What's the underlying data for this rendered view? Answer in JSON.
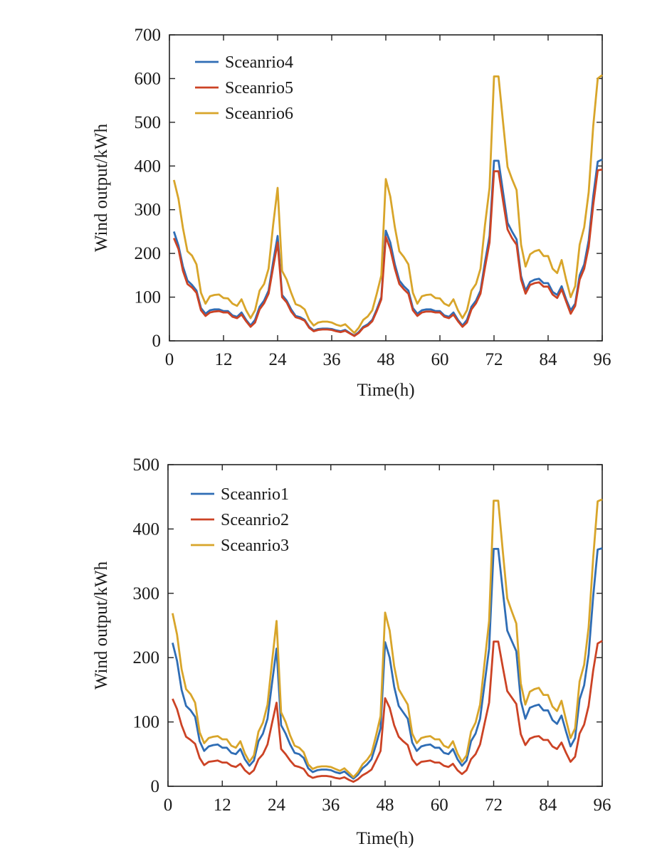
{
  "colors": {
    "blue": "#2f6db5",
    "red": "#cc4325",
    "yellow": "#d8a52a"
  },
  "chart_data": [
    {
      "type": "line",
      "xlabel": "Time(h)",
      "ylabel": "Wind output/kWh",
      "xlim": [
        0,
        96
      ],
      "ylim": [
        0,
        700
      ],
      "xticks": [
        "0",
        "12",
        "24",
        "36",
        "48",
        "60",
        "72",
        "84",
        "96"
      ],
      "yticks": [
        "0",
        "100",
        "200",
        "300",
        "400",
        "500",
        "600",
        "700"
      ],
      "legend_position": "top-left",
      "grid": false,
      "x": [
        1,
        2,
        3,
        4,
        5,
        6,
        7,
        8,
        9,
        10,
        11,
        12,
        13,
        14,
        15,
        16,
        17,
        18,
        19,
        20,
        21,
        22,
        23,
        24,
        25,
        26,
        27,
        28,
        29,
        30,
        31,
        32,
        33,
        34,
        35,
        36,
        37,
        38,
        39,
        40,
        41,
        42,
        43,
        44,
        45,
        46,
        47,
        48,
        49,
        50,
        51,
        52,
        53,
        54,
        55,
        56,
        57,
        58,
        59,
        60,
        61,
        62,
        63,
        64,
        65,
        66,
        67,
        68,
        69,
        70,
        71,
        72,
        73,
        74,
        75,
        76,
        77,
        78,
        79,
        80,
        81,
        82,
        83,
        84,
        85,
        86,
        87,
        88,
        89,
        90,
        91,
        92,
        93,
        94,
        95,
        96
      ],
      "series": [
        {
          "name": "Sceanrio4",
          "color": "#2f6db5",
          "values": [
            250,
            218,
            170,
            138,
            128,
            115,
            75,
            62,
            70,
            72,
            72,
            68,
            68,
            58,
            55,
            65,
            48,
            35,
            48,
            78,
            92,
            115,
            180,
            240,
            105,
            92,
            72,
            57,
            54,
            48,
            32,
            24,
            27,
            28,
            28,
            27,
            24,
            22,
            25,
            18,
            12,
            20,
            32,
            38,
            48,
            72,
            100,
            252,
            225,
            175,
            138,
            125,
            115,
            75,
            62,
            70,
            72,
            72,
            68,
            68,
            58,
            55,
            65,
            48,
            35,
            48,
            78,
            92,
            115,
            180,
            240,
            412,
            412,
            340,
            270,
            250,
            232,
            148,
            115,
            135,
            140,
            142,
            132,
            132,
            112,
            105,
            125,
            95,
            70,
            85,
            150,
            175,
            230,
            330,
            410,
            415
          ]
        },
        {
          "name": "Sceanrio5",
          "color": "#cc4325",
          "values": [
            235,
            210,
            160,
            130,
            122,
            110,
            70,
            57,
            65,
            67,
            68,
            65,
            65,
            55,
            52,
            60,
            45,
            32,
            42,
            72,
            86,
            108,
            168,
            225,
            100,
            88,
            67,
            54,
            51,
            46,
            30,
            22,
            25,
            26,
            26,
            25,
            22,
            20,
            23,
            17,
            11,
            18,
            30,
            35,
            45,
            68,
            95,
            238,
            210,
            165,
            130,
            118,
            108,
            70,
            57,
            65,
            67,
            67,
            65,
            65,
            55,
            52,
            60,
            45,
            32,
            42,
            72,
            86,
            108,
            168,
            225,
            388,
            388,
            320,
            255,
            235,
            220,
            140,
            108,
            128,
            132,
            134,
            124,
            124,
            106,
            98,
            118,
            90,
            62,
            80,
            140,
            165,
            215,
            310,
            390,
            392
          ]
        },
        {
          "name": "Sceanrio6",
          "color": "#d8a52a",
          "values": [
            368,
            325,
            258,
            205,
            195,
            175,
            110,
            85,
            102,
            105,
            106,
            98,
            97,
            85,
            80,
            95,
            70,
            52,
            70,
            115,
            130,
            165,
            265,
            350,
            160,
            140,
            110,
            84,
            80,
            72,
            48,
            35,
            42,
            44,
            44,
            42,
            37,
            34,
            38,
            28,
            18,
            30,
            48,
            56,
            70,
            108,
            150,
            370,
            330,
            260,
            205,
            192,
            175,
            110,
            85,
            102,
            105,
            106,
            98,
            97,
            85,
            80,
            95,
            70,
            52,
            70,
            115,
            130,
            165,
            265,
            350,
            605,
            605,
            500,
            398,
            370,
            345,
            220,
            170,
            198,
            205,
            208,
            194,
            194,
            165,
            155,
            185,
            140,
            100,
            125,
            220,
            260,
            340,
            490,
            600,
            608
          ]
        }
      ]
    },
    {
      "type": "line",
      "xlabel": "Time(h)",
      "ylabel": "Wind output/kWh",
      "xlim": [
        0,
        96
      ],
      "ylim": [
        0,
        500
      ],
      "xticks": [
        "0",
        "12",
        "24",
        "36",
        "48",
        "60",
        "72",
        "84",
        "96"
      ],
      "yticks": [
        "0",
        "100",
        "200",
        "300",
        "400",
        "500"
      ],
      "legend_position": "top-left",
      "grid": false,
      "x": [
        1,
        2,
        3,
        4,
        5,
        6,
        7,
        8,
        9,
        10,
        11,
        12,
        13,
        14,
        15,
        16,
        17,
        18,
        19,
        20,
        21,
        22,
        23,
        24,
        25,
        26,
        27,
        28,
        29,
        30,
        31,
        32,
        33,
        34,
        35,
        36,
        37,
        38,
        39,
        40,
        41,
        42,
        43,
        44,
        45,
        46,
        47,
        48,
        49,
        50,
        51,
        52,
        53,
        54,
        55,
        56,
        57,
        58,
        59,
        60,
        61,
        62,
        63,
        64,
        65,
        66,
        67,
        68,
        69,
        70,
        71,
        72,
        73,
        74,
        75,
        76,
        77,
        78,
        79,
        80,
        81,
        82,
        83,
        84,
        85,
        86,
        87,
        88,
        89,
        90,
        91,
        92,
        93,
        94,
        95,
        96
      ],
      "series": [
        {
          "name": "Sceanrio1",
          "color": "#2f6db5",
          "values": [
            223,
            195,
            150,
            125,
            118,
            108,
            70,
            55,
            62,
            64,
            65,
            60,
            60,
            52,
            50,
            58,
            42,
            32,
            40,
            70,
            82,
            105,
            160,
            214,
            95,
            82,
            65,
            52,
            50,
            44,
            28,
            22,
            25,
            26,
            26,
            25,
            22,
            20,
            23,
            17,
            12,
            18,
            28,
            34,
            42,
            65,
            90,
            224,
            200,
            155,
            125,
            115,
            105,
            68,
            55,
            62,
            64,
            65,
            60,
            60,
            52,
            50,
            58,
            42,
            32,
            40,
            70,
            82,
            105,
            160,
            214,
            369,
            369,
            305,
            242,
            226,
            210,
            133,
            105,
            122,
            125,
            127,
            118,
            118,
            103,
            97,
            110,
            85,
            62,
            75,
            135,
            157,
            205,
            295,
            368,
            370
          ]
        },
        {
          "name": "Sceanrio2",
          "color": "#cc4325",
          "values": [
            136,
            120,
            95,
            77,
            72,
            66,
            44,
            33,
            38,
            39,
            40,
            37,
            37,
            32,
            30,
            35,
            25,
            19,
            25,
            42,
            50,
            65,
            98,
            130,
            58,
            50,
            40,
            32,
            30,
            27,
            17,
            13,
            15,
            16,
            16,
            15,
            13,
            12,
            14,
            10,
            7,
            11,
            17,
            21,
            26,
            40,
            55,
            137,
            122,
            95,
            77,
            70,
            64,
            42,
            33,
            38,
            39,
            40,
            37,
            37,
            32,
            30,
            35,
            25,
            19,
            25,
            42,
            50,
            65,
            98,
            130,
            225,
            225,
            186,
            148,
            138,
            128,
            81,
            64,
            74,
            77,
            78,
            72,
            72,
            62,
            58,
            68,
            52,
            38,
            46,
            82,
            96,
            125,
            180,
            222,
            226
          ]
        },
        {
          "name": "Sceanrio3",
          "color": "#d8a52a",
          "values": [
            269,
            236,
            182,
            151,
            143,
            130,
            84,
            67,
            75,
            77,
            78,
            73,
            73,
            63,
            60,
            70,
            51,
            38,
            48,
            85,
            99,
            127,
            193,
            257,
            115,
            100,
            79,
            63,
            60,
            53,
            34,
            27,
            30,
            31,
            31,
            30,
            27,
            24,
            28,
            21,
            14,
            22,
            34,
            41,
            51,
            79,
            109,
            270,
            242,
            187,
            151,
            139,
            127,
            82,
            67,
            75,
            77,
            78,
            73,
            73,
            63,
            60,
            70,
            51,
            38,
            48,
            85,
            99,
            127,
            193,
            257,
            444,
            444,
            367,
            292,
            272,
            253,
            160,
            127,
            147,
            151,
            153,
            142,
            142,
            124,
            117,
            133,
            103,
            75,
            90,
            163,
            189,
            247,
            355,
            443,
            446
          ]
        }
      ]
    }
  ]
}
